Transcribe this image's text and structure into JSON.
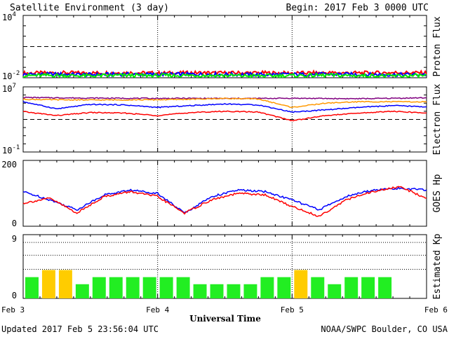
{
  "header": {
    "title": "Satellite Environment (3 day)",
    "begin": "Begin:  2017 Feb 3 0000 UTC"
  },
  "footer": {
    "updated": "Updated 2017 Feb  5 23:56:04 UTC",
    "credit": "NOAA/SWPC Boulder, CO USA"
  },
  "chart_data": [
    {
      "type": "line",
      "ylabel": "Proton Flux",
      "yscale": "log",
      "ylim": [
        0.01,
        10000
      ],
      "tick_labels": [
        {
          "base": "10",
          "exp": "4",
          "value": 10000
        },
        {
          "base": "10",
          "exp": "-2",
          "value": 0.01
        }
      ],
      "threshold": 10,
      "series": [
        {
          "color": "#ff0000",
          "values": [
            0.028,
            0.03,
            0.029,
            0.031,
            0.028,
            0.03,
            0.029,
            0.03,
            0.028,
            0.03,
            0.029,
            0.031,
            0.03
          ]
        },
        {
          "color": "#0000ff",
          "values": [
            0.021,
            0.022,
            0.02,
            0.022,
            0.021,
            0.022,
            0.021,
            0.02,
            0.021,
            0.022,
            0.021,
            0.02,
            0.021
          ]
        },
        {
          "color": "#00ee00",
          "values": [
            0.016,
            0.017,
            0.015,
            0.017,
            0.016,
            0.017,
            0.016,
            0.015,
            0.016,
            0.017,
            0.016,
            0.015,
            0.016
          ]
        }
      ]
    },
    {
      "type": "line",
      "ylabel": "Electron Flux",
      "yscale": "log",
      "ylim": [
        0.1,
        10000000
      ],
      "tick_labels": [
        {
          "base": "10",
          "exp": "7",
          "value": 10000000
        },
        {
          "base": "10",
          "exp": "-1",
          "value": 0.1
        }
      ],
      "threshold": 1000,
      "series": [
        {
          "color": "#800080",
          "values": [
            500000,
            450000,
            420000,
            400000,
            380000,
            390000,
            370000,
            380000,
            400000,
            370000,
            350000,
            400000,
            450000
          ]
        },
        {
          "color": "#ff9900",
          "values": [
            300000,
            260000,
            240000,
            250000,
            260000,
            300000,
            380000,
            320000,
            30000,
            100000,
            150000,
            150000,
            140000
          ]
        },
        {
          "color": "#0000ff",
          "values": [
            150000,
            20000,
            70000,
            60000,
            30000,
            50000,
            80000,
            60000,
            8000,
            15000,
            30000,
            50000,
            35000
          ]
        },
        {
          "color": "#ff0000",
          "values": [
            9000,
            3000,
            7000,
            6000,
            3000,
            7000,
            10000,
            8000,
            700,
            3000,
            6000,
            10000,
            6000
          ]
        }
      ]
    },
    {
      "type": "line",
      "ylabel": "GOES Hp",
      "ylim": [
        0,
        200
      ],
      "tick_labels": [
        "200",
        "0"
      ],
      "series": [
        {
          "color": "#0000ff",
          "values": [
            105,
            80,
            50,
            95,
            110,
            100,
            40,
            90,
            110,
            105,
            80,
            50,
            90,
            110,
            115,
            110
          ]
        },
        {
          "color": "#ff0000",
          "values": [
            70,
            85,
            40,
            90,
            105,
            90,
            40,
            80,
            100,
            95,
            60,
            30,
            80,
            105,
            120,
            85
          ]
        }
      ]
    },
    {
      "type": "bar",
      "ylabel": "Estimated Kp",
      "ylim": [
        0,
        9
      ],
      "tick_labels": [
        "9",
        "0"
      ],
      "colors": {
        "normal": "#22ee22",
        "elevated": "#ffcc00"
      },
      "values": [
        3,
        4,
        4,
        2,
        3,
        3,
        3,
        3,
        3,
        3,
        2,
        2,
        2,
        2,
        3,
        3,
        4,
        3,
        2,
        3,
        3,
        3
      ],
      "elevated_threshold": 4
    }
  ],
  "xaxis": {
    "label": "Universal Time",
    "ticks": [
      "Feb 3",
      "Feb 4",
      "Feb 5",
      "Feb 6"
    ]
  },
  "colors": {
    "axis": "#000000",
    "background": "#ffffff"
  }
}
